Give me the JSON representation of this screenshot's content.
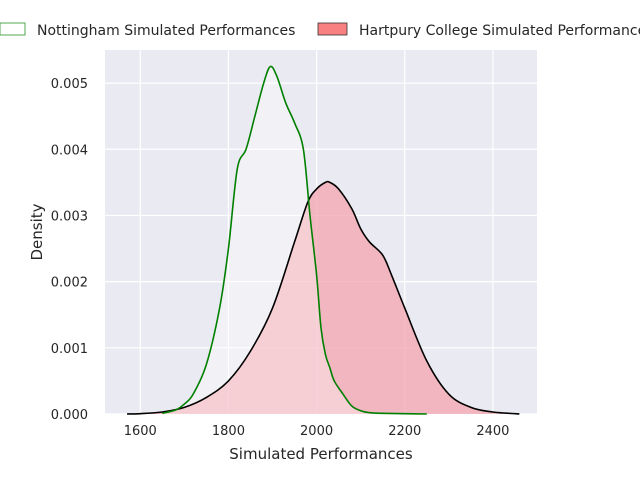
{
  "chart_data": {
    "type": "area",
    "title": "",
    "xlabel": "Simulated Performances",
    "ylabel": "Density",
    "xlim": [
      1520,
      2500
    ],
    "ylim": [
      0,
      0.0055
    ],
    "x_ticks": [
      1600,
      1800,
      2000,
      2200,
      2400
    ],
    "x_tick_labels": [
      "1600",
      "1800",
      "2000",
      "2200",
      "2400"
    ],
    "y_ticks": [
      0,
      0.001,
      0.002,
      0.003,
      0.004,
      0.005
    ],
    "y_tick_labels": [
      "0.000",
      "0.001",
      "0.002",
      "0.003",
      "0.004",
      "0.005"
    ],
    "grid": true,
    "legend_position": "top",
    "series": [
      {
        "name": "Nottingham Simulated Performances",
        "line_color": "#008000",
        "fill_color": "#ffffff",
        "x": [
          1650,
          1680,
          1700,
          1720,
          1750,
          1780,
          1800,
          1820,
          1840,
          1860,
          1880,
          1895,
          1910,
          1930,
          1950,
          1970,
          1985,
          2000,
          2010,
          2020,
          2030,
          2040,
          2060,
          2080,
          2100,
          2120,
          2150,
          2200,
          2250
        ],
        "y": [
          1e-05,
          6e-05,
          0.00015,
          0.0003,
          0.00075,
          0.0016,
          0.0025,
          0.0037,
          0.004,
          0.0045,
          0.005,
          0.00525,
          0.0051,
          0.0047,
          0.0044,
          0.004,
          0.003,
          0.0021,
          0.0013,
          0.0009,
          0.0007,
          0.0005,
          0.0003,
          0.00012,
          5e-05,
          2e-05,
          1e-05,
          5e-06,
          0
        ]
      },
      {
        "name": "Hartpury College Simulated Performances",
        "line_color": "#000000",
        "fill_color": "#f4a0aa",
        "x": [
          1570,
          1600,
          1650,
          1700,
          1750,
          1800,
          1850,
          1900,
          1950,
          1980,
          2000,
          2020,
          2030,
          2050,
          2080,
          2100,
          2120,
          2150,
          2170,
          2200,
          2250,
          2300,
          2350,
          2400,
          2450,
          2460
        ],
        "y": [
          0,
          5e-06,
          3e-05,
          0.0001,
          0.00025,
          0.0005,
          0.00095,
          0.0016,
          0.0026,
          0.0032,
          0.0034,
          0.0035,
          0.0035,
          0.0034,
          0.0031,
          0.0028,
          0.0026,
          0.0024,
          0.0021,
          0.0016,
          0.0008,
          0.0003,
          0.0001,
          3e-05,
          5e-06,
          0
        ]
      }
    ]
  }
}
